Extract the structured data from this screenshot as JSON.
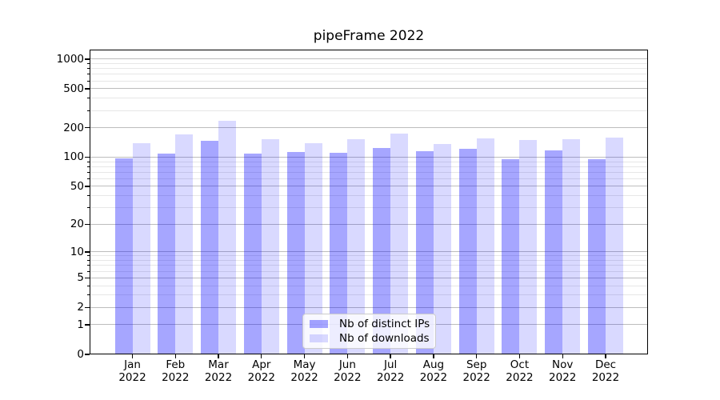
{
  "chart_data": {
    "type": "bar",
    "title": "pipeFrame 2022",
    "scale": "log1p",
    "categories": [
      "Jan",
      "Feb",
      "Mar",
      "Apr",
      "May",
      "Jun",
      "Jul",
      "Aug",
      "Sep",
      "Oct",
      "Nov",
      "Dec"
    ],
    "xtick_year": "2022",
    "series": [
      {
        "name": "Nb of distinct IPs",
        "color": "rgba(0,0,255,0.35)",
        "values": [
          98,
          108,
          148,
          108,
          114,
          110,
          125,
          115,
          122,
          96,
          118,
          96
        ]
      },
      {
        "name": "Nb of downloads",
        "color": "rgba(0,0,255,0.15)",
        "values": [
          140,
          170,
          237,
          154,
          139,
          154,
          174,
          137,
          155,
          149,
          154,
          160
        ]
      }
    ],
    "yticks": [
      0,
      1,
      2,
      5,
      10,
      20,
      50,
      100,
      200,
      500,
      1000
    ],
    "yticks_minor": [
      3,
      4,
      6,
      7,
      8,
      9,
      30,
      40,
      60,
      70,
      80,
      90,
      300,
      400,
      600,
      700,
      800,
      900
    ],
    "ylim": [
      0,
      1250
    ],
    "grid": true,
    "legend_position": "lower center",
    "colors": {
      "grid_major": "#bdbdbd",
      "grid_minor": "#e7e7e7",
      "spine": "#000000",
      "background": "#ffffff"
    }
  }
}
